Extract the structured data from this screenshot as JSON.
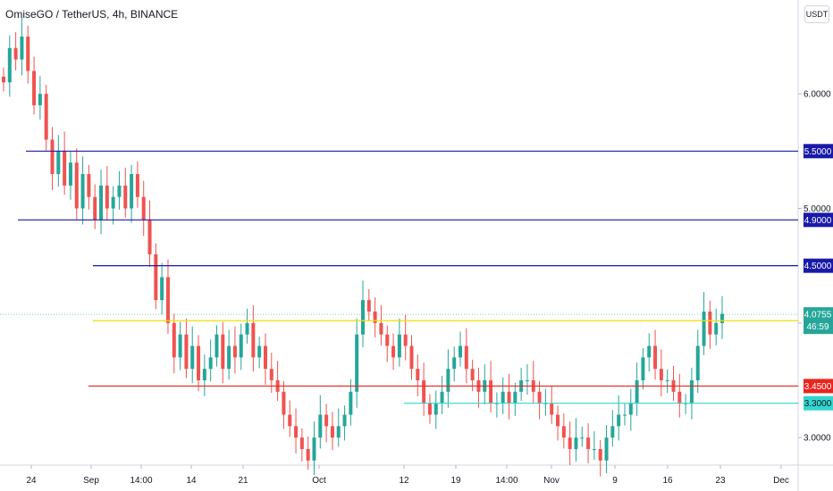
{
  "header": {
    "title": "OmiseGO / TetherUS, 4h, BINANCE",
    "currency": "USDT"
  },
  "chart_data": {
    "type": "candlestick",
    "symbol": "OmiseGO / TetherUS",
    "interval": "4h",
    "exchange": "BINANCE",
    "ylim": [
      2.76,
      6.78
    ],
    "y_ticks": [
      {
        "value": 3.0,
        "label": "3.0000"
      },
      {
        "value": 4.0,
        "label": "4.0000"
      },
      {
        "value": 5.0,
        "label": "5.0000"
      },
      {
        "value": 6.0,
        "label": "6.0000"
      }
    ],
    "x_ticks": [
      "24",
      "Sep",
      "14:00",
      "14",
      "21",
      "Oct",
      "12",
      "19",
      "14:00",
      "Nov",
      "9",
      "16",
      "23",
      "Dec"
    ],
    "horizontal_lines": [
      {
        "value": 5.5,
        "label": "5.5000",
        "color": "#1a1aa8",
        "from": "2020-08-23"
      },
      {
        "value": 4.9,
        "label": "4.9000",
        "color": "#1a1aa8",
        "from": "2020-08-20"
      },
      {
        "value": 4.5,
        "label": "4.5000",
        "color": "#1a1aa8",
        "from": "2020-09-01"
      },
      {
        "value": 4.02,
        "label": "4.0200",
        "color": "#f0e000",
        "from": "2020-09-01"
      },
      {
        "value": 3.45,
        "label": "3.4500",
        "color": "#e8261e",
        "from": "2020-08-31"
      },
      {
        "value": 3.3,
        "label": "3.3000",
        "color": "#33d6cf",
        "from": "2020-10-12"
      }
    ],
    "last_price": {
      "value": 4.0755,
      "label": "4.0755",
      "countdown": "46:59",
      "color": "#26a69a"
    },
    "candles_close": [
      6.1,
      6.4,
      6.3,
      6.5,
      6.2,
      5.9,
      6.0,
      5.6,
      5.3,
      5.5,
      5.2,
      5.4,
      5.0,
      5.3,
      5.1,
      4.9,
      5.2,
      5.0,
      5.1,
      5.2,
      5.0,
      5.3,
      5.1,
      4.9,
      4.6,
      4.2,
      4.4,
      4.0,
      3.7,
      3.9,
      3.6,
      3.8,
      3.5,
      3.6,
      3.7,
      3.9,
      3.6,
      3.8,
      3.7,
      3.9,
      4.0,
      3.7,
      3.8,
      3.6,
      3.5,
      3.4,
      3.2,
      3.1,
      3.0,
      2.9,
      2.8,
      3.0,
      3.2,
      3.1,
      3.0,
      3.1,
      3.2,
      3.4,
      3.9,
      4.2,
      4.1,
      4.0,
      3.9,
      3.8,
      3.7,
      3.9,
      3.8,
      3.6,
      3.5,
      3.3,
      3.2,
      3.3,
      3.4,
      3.6,
      3.7,
      3.8,
      3.6,
      3.5,
      3.4,
      3.5,
      3.3,
      3.3,
      3.4,
      3.3,
      3.4,
      3.5,
      3.5,
      3.4,
      3.3,
      3.3,
      3.2,
      3.1,
      3.0,
      2.9,
      3.0,
      3.0,
      2.9,
      2.9,
      2.8,
      3.0,
      3.1,
      3.2,
      3.2,
      3.3,
      3.5,
      3.7,
      3.8,
      3.6,
      3.5,
      3.5,
      3.4,
      3.3,
      3.3,
      3.5,
      3.8,
      4.1,
      3.9,
      4.0,
      4.08
    ]
  }
}
